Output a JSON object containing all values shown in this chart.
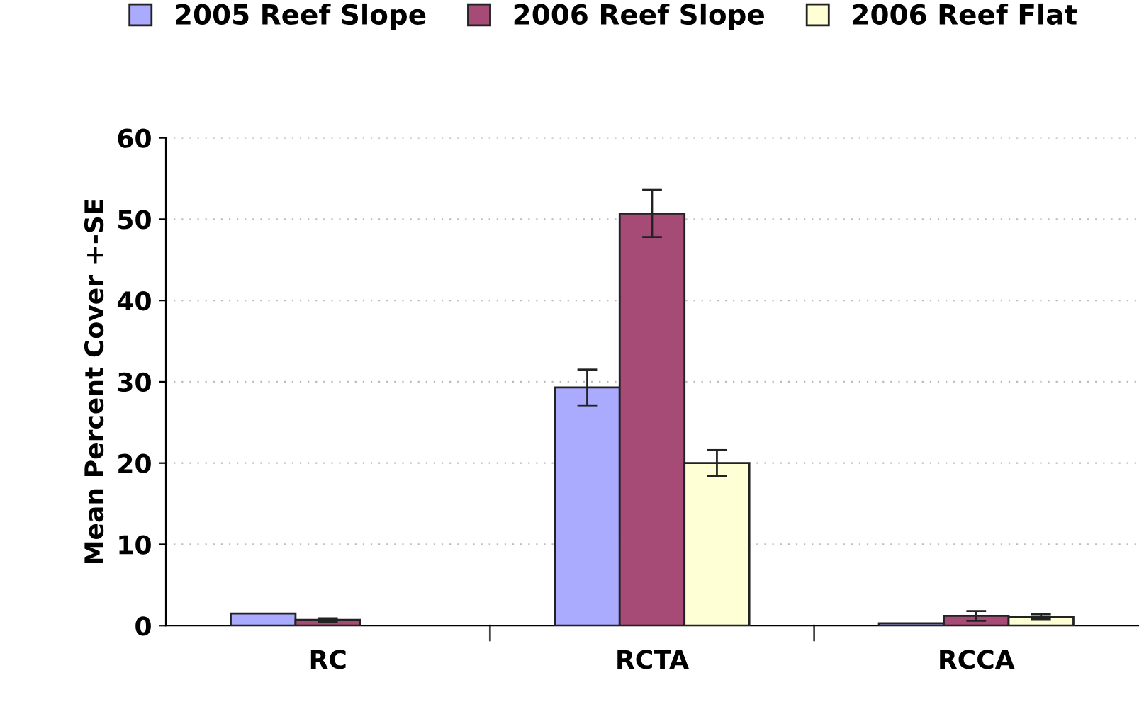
{
  "chart_data": {
    "type": "bar",
    "ylabel": "Mean Percent Cover +-SE",
    "categories": [
      "RC",
      "RCTA",
      "RCCA"
    ],
    "series": [
      {
        "name": "2005 Reef Slope",
        "color": "#aaaaff",
        "values": [
          1.5,
          29.3,
          0.3
        ],
        "errors": [
          null,
          2.2,
          null
        ]
      },
      {
        "name": "2006 Reef Slope",
        "color": "#a64a76",
        "values": [
          0.7,
          50.7,
          1.2
        ],
        "errors": [
          0.2,
          2.9,
          0.6
        ]
      },
      {
        "name": "2006 Reef Flat",
        "color": "#ffffd6",
        "values": [
          null,
          20,
          1.1
        ],
        "errors": [
          null,
          1.6,
          0.3
        ]
      }
    ],
    "ylim": [
      0,
      60
    ],
    "yticks": [
      0,
      10,
      20,
      30,
      40,
      50,
      60
    ],
    "grid": "y",
    "legend": "top"
  }
}
